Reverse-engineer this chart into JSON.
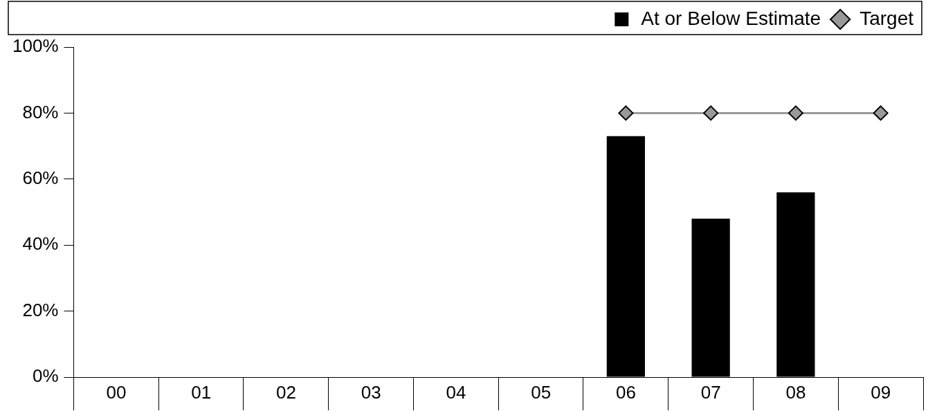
{
  "chart_data": {
    "type": "bar",
    "categories": [
      "00",
      "01",
      "02",
      "03",
      "04",
      "05",
      "06",
      "07",
      "08",
      "09"
    ],
    "series": [
      {
        "name": "At or Below Estimate",
        "color": "#000000",
        "values": [
          null,
          null,
          null,
          null,
          null,
          null,
          73,
          48,
          56,
          null
        ]
      },
      {
        "name": "Target",
        "type": "line",
        "color": "#999999",
        "values": [
          null,
          null,
          null,
          null,
          null,
          null,
          80,
          80,
          80,
          80
        ]
      }
    ],
    "ylim": [
      0,
      100
    ],
    "yticks": [
      {
        "value": 0,
        "label": "0%"
      },
      {
        "value": 20,
        "label": "20%"
      },
      {
        "value": 40,
        "label": "40%"
      },
      {
        "value": 60,
        "label": "60%"
      },
      {
        "value": 80,
        "label": "80%"
      },
      {
        "value": 100,
        "label": "100%"
      }
    ],
    "grid": false,
    "legend": "top right",
    "marker": "diamond",
    "line_style": "solid"
  }
}
